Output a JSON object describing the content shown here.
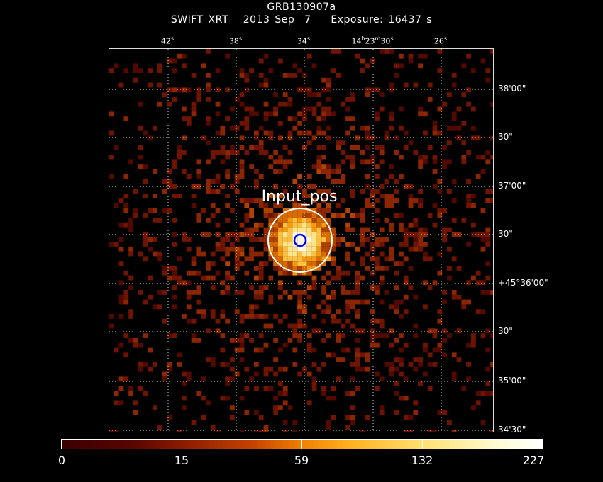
{
  "header": {
    "title": "GRB130907a",
    "subtitle": "SWIFT XRT   2013 Sep  7    Exposure: 16437 s"
  },
  "ra_labels": [
    {
      "main": "42",
      "unit": "s"
    },
    {
      "main": "38",
      "unit": "s"
    },
    {
      "main": "34",
      "unit": "s"
    },
    {
      "main": "14",
      "unit": "h",
      "main2": "23",
      "unit2": "m",
      "main3": "30",
      "unit3": "s"
    },
    {
      "main": "26",
      "unit": "s"
    }
  ],
  "dec_labels": [
    "38'00\"",
    "30\"",
    "37'00\"",
    "30\"",
    "+45°36'00\"",
    "30\"",
    "35'00\"",
    "34'30\""
  ],
  "source": {
    "label": "Input_pos"
  },
  "colorbar": {
    "ticks": [
      "0",
      "15",
      "59",
      "132",
      "227"
    ]
  },
  "colors": {
    "outer_circle": "#ffffff",
    "inner_circle": "#0000ff"
  }
}
